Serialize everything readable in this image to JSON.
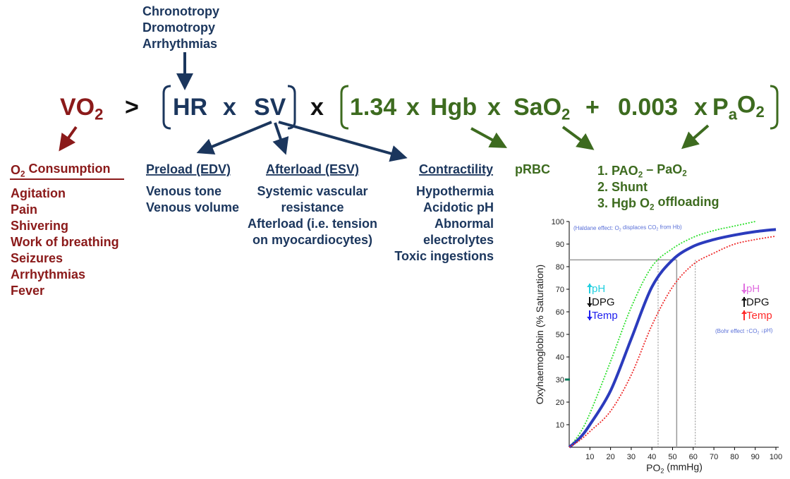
{
  "top_notes": [
    "Chronotropy",
    "Dromotropy",
    "Arrhythmias"
  ],
  "equation": {
    "lhs": [
      "VO",
      "2"
    ],
    "gt": ">",
    "hr": "HR",
    "x1": "x",
    "sv": "SV",
    "x2": "x",
    "c134": "1.34",
    "x3": "x",
    "hgb": "Hgb",
    "x4": "x",
    "sao2": [
      "SaO",
      "2"
    ],
    "plus": "+",
    "c003": "0.003",
    "x5": "x",
    "pao2": [
      "P",
      "a",
      "O",
      "2"
    ]
  },
  "consumption": {
    "title": [
      "O",
      "2",
      " Consumption"
    ],
    "items": [
      "Agitation",
      "Pain",
      "Shivering",
      "Work of breathing",
      "Seizures",
      "Arrhythmias",
      "Fever"
    ]
  },
  "preload": {
    "title": "Preload (EDV)",
    "items": [
      "Venous tone",
      "Venous volume"
    ]
  },
  "afterload": {
    "title": "Afterload (ESV)",
    "items": [
      "Systemic vascular",
      "resistance",
      "Afterload (i.e. tension",
      "on myocardiocytes)"
    ]
  },
  "contractility": {
    "title": "Contractility",
    "items": [
      "Hypothermia",
      "Acidotic pH",
      "Abnormal",
      "electrolytes",
      "Toxic ingestions"
    ]
  },
  "prbc": "pRBC",
  "oxygen_factors": [
    [
      "1. PAO",
      "2",
      " – PaO",
      "2"
    ],
    [
      "2. Shunt"
    ],
    [
      "3. Hgb O",
      "2",
      " offloading"
    ]
  ],
  "chart": {
    "ylabel": "Oxyhaemoglobin (% Saturation)",
    "xlabel": [
      "PO",
      "2",
      " (mmHg)"
    ],
    "xlim": [
      0,
      100
    ],
    "ylim": [
      0,
      100
    ],
    "xticks": [
      10,
      20,
      30,
      40,
      50,
      60,
      70,
      80,
      90,
      100
    ],
    "yticks": [
      10,
      20,
      30,
      40,
      50,
      60,
      70,
      80,
      90,
      100
    ],
    "haldane": [
      "(Haldane effect: O",
      "2",
      " displaces CO",
      "2",
      " from Hb)"
    ],
    "bohr": [
      "(Bohr effect ↑CO",
      "2",
      " ↓pH)"
    ],
    "left_shift": [
      {
        "label": "pH",
        "color": "#22cfe0",
        "dir": "up"
      },
      {
        "label": "DPG",
        "color": "#111111",
        "dir": "down"
      },
      {
        "label": "Temp",
        "color": "#2020ee",
        "dir": "down"
      }
    ],
    "right_shift": [
      {
        "label": "pH",
        "color": "#e070e0",
        "dir": "down"
      },
      {
        "label": "DPG",
        "color": "#111111",
        "dir": "up"
      },
      {
        "label": "Temp",
        "color": "#ff2a2a",
        "dir": "up"
      }
    ],
    "hline": 83,
    "vline_solid": 52,
    "vlines_dotted": [
      43,
      61
    ],
    "axis_marker": 30,
    "curves": [
      {
        "color": "#2ee02e",
        "dash": true,
        "x": [
          0,
          5,
          10,
          20,
          30,
          40,
          50,
          60,
          70,
          80,
          90
        ],
        "y": [
          0,
          6,
          15,
          38,
          62,
          80,
          88,
          93,
          96,
          98,
          100
        ]
      },
      {
        "color": "#2b3bbd",
        "dash": false,
        "x": [
          0,
          5,
          10,
          20,
          30,
          40,
          50,
          60,
          70,
          80,
          90,
          100
        ],
        "y": [
          0,
          4,
          10,
          25,
          48,
          71,
          83,
          89,
          92,
          94,
          95.5,
          96.5
        ]
      },
      {
        "color": "#ee2a2a",
        "dash": true,
        "x": [
          0,
          5,
          10,
          20,
          30,
          40,
          50,
          60,
          70,
          80,
          90,
          100
        ],
        "y": [
          0,
          3,
          7,
          16,
          32,
          54,
          71,
          81,
          86,
          90,
          92,
          93.5
        ]
      }
    ]
  }
}
